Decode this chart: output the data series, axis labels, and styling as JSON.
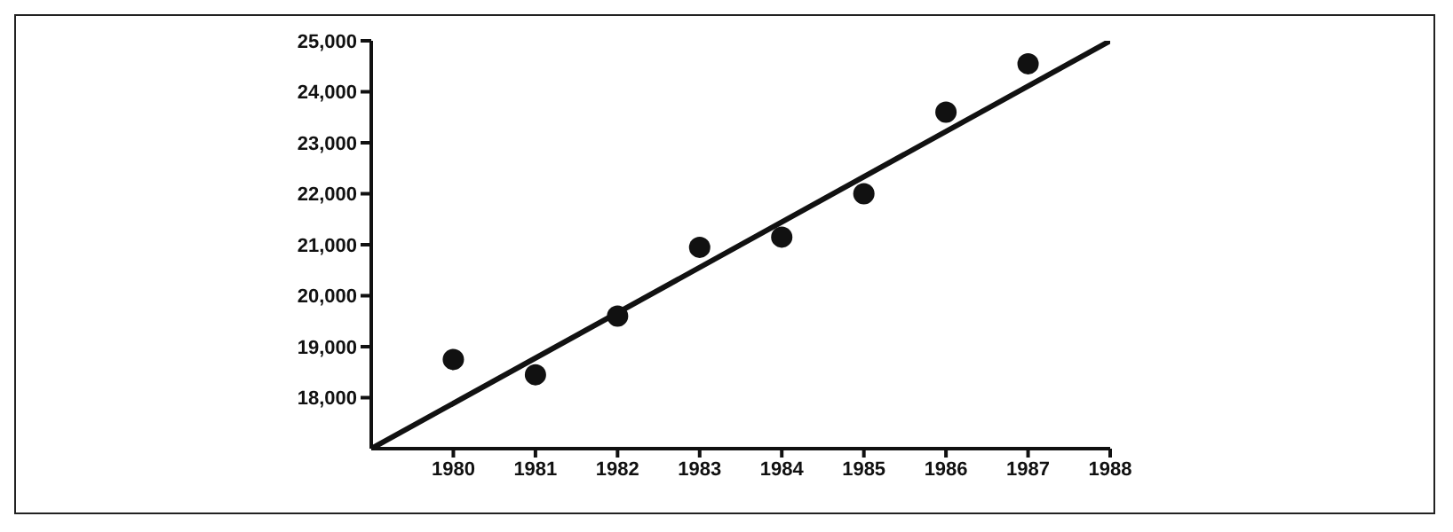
{
  "chart_data": {
    "type": "scatter",
    "x": [
      1980,
      1981,
      1982,
      1983,
      1984,
      1985,
      1986,
      1987
    ],
    "series": [
      {
        "color": "#111111",
        "values": [
          18750,
          18450,
          19600,
          20950,
          21150,
          22000,
          23600,
          24550
        ]
      },
      {
        "type": "line",
        "color": "#111111",
        "x": [
          1979,
          1988
        ],
        "values": [
          17000,
          25000
        ],
        "marker": "none"
      }
    ],
    "xlim": [
      1979,
      1988
    ],
    "xticks": [
      1980,
      1981,
      1982,
      1983,
      1984,
      1985,
      1986,
      1987,
      1988
    ],
    "ylim": [
      17000,
      25000
    ],
    "yticks": [
      {
        "value": 18000,
        "label": "18,000"
      },
      {
        "value": 19000,
        "label": "19,000"
      },
      {
        "value": 20000,
        "label": "20,000"
      },
      {
        "value": 21000,
        "label": "21,000"
      },
      {
        "value": 22000,
        "label": "22,000"
      },
      {
        "value": 23000,
        "label": "23,000"
      },
      {
        "value": 24000,
        "label": "24,000"
      },
      {
        "value": 25000,
        "label": "25,000"
      }
    ],
    "marker": "circle",
    "grid": false,
    "legend": false
  }
}
